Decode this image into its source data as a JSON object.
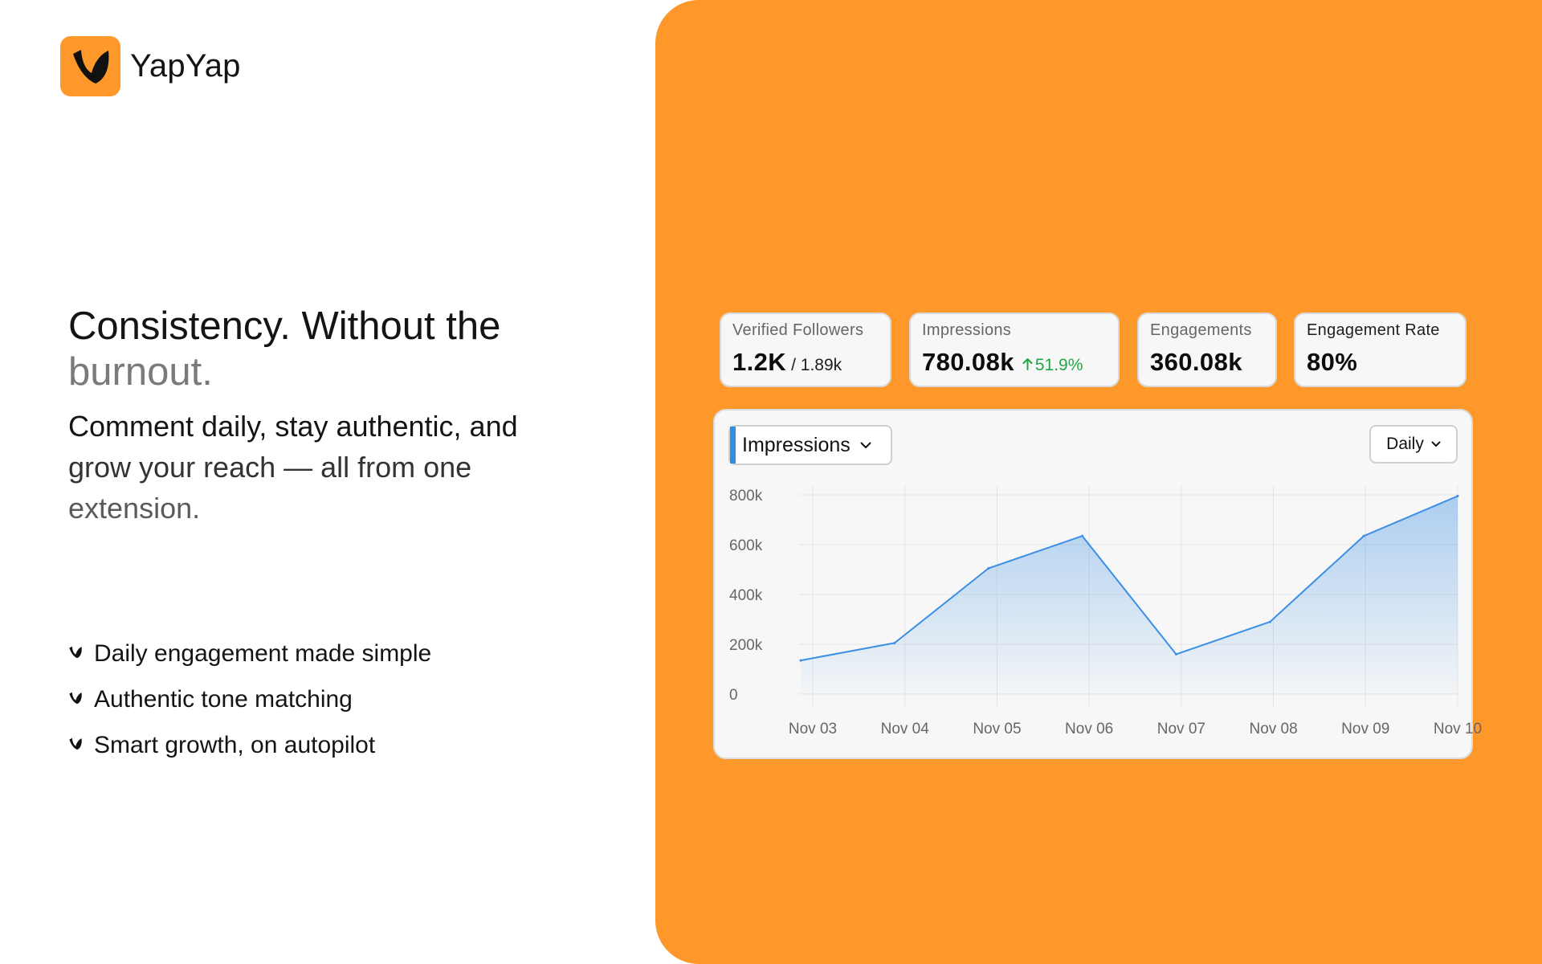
{
  "brand": {
    "name": "YapYap",
    "logo_icon": "yapyap-logo-icon",
    "color": "#FF982A"
  },
  "hero": {
    "headline_line1": "Consistency. Without the",
    "headline_line2": "burnout.",
    "sub_line1": "Comment daily, stay authentic, and",
    "sub_line2": "grow your reach — all from one",
    "sub_line3": "extension."
  },
  "features": [
    {
      "icon": "yapyap-bullet-icon",
      "label": "Daily engagement made simple"
    },
    {
      "icon": "yapyap-bullet-icon",
      "label": "Authentic tone matching"
    },
    {
      "icon": "yapyap-bullet-icon",
      "label": "Smart growth, on autopilot"
    }
  ],
  "stats": {
    "verified_followers": {
      "label": "Verified Followers",
      "value": "1.2K",
      "total": "/ 1.89k"
    },
    "impressions": {
      "label": "Impressions",
      "value": "780.08k",
      "change": "51.9%",
      "change_icon": "arrow-up-icon",
      "change_color": "#22a548"
    },
    "engagements": {
      "label": "Engagements",
      "value": "360.08k"
    },
    "engagement_rate": {
      "label": "Engagement Rate",
      "value": "80%"
    }
  },
  "chart_controls": {
    "metric": "Impressions",
    "period": "Daily",
    "dropdown_icon": "chevron-down-icon"
  },
  "chart_data": {
    "type": "area",
    "x": [
      "Nov 03",
      "Nov 04",
      "Nov 05",
      "Nov 06",
      "Nov 07",
      "Nov 08",
      "Nov 09",
      "Nov 10"
    ],
    "series": [
      {
        "values": [
          135000,
          205000,
          505000,
          635000,
          160000,
          290000,
          635000,
          795000
        ],
        "color": "#3b8fe4"
      }
    ],
    "yticks": [
      0,
      200000,
      400000,
      600000,
      800000
    ],
    "ytick_labels": [
      "0",
      "200k",
      "400k",
      "600k",
      "800k"
    ],
    "ylim": [
      0,
      800000
    ],
    "grid": true,
    "legend": "none"
  }
}
